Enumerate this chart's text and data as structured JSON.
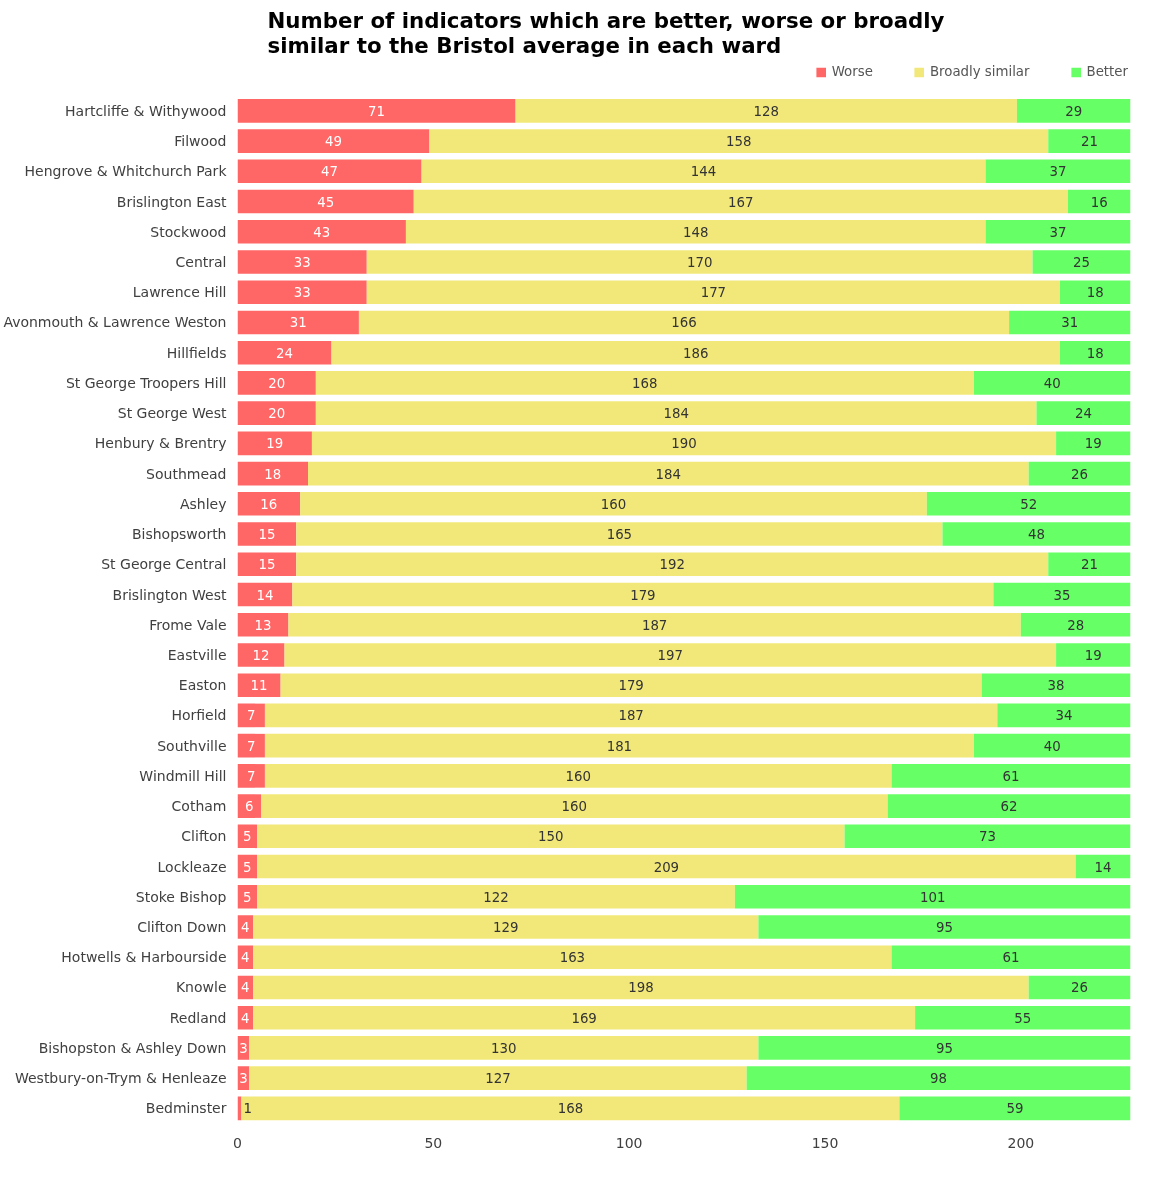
{
  "chart_data": {
    "type": "bar",
    "orientation": "horizontal",
    "stacked": true,
    "title": "Number of indicators which are better, worse or broadly similar to the Bristol average in each ward",
    "categories": [
      "Hartcliffe & Withywood",
      "Filwood",
      "Hengrove & Whitchurch Park",
      "Brislington East",
      "Stockwood",
      "Central",
      "Lawrence Hill",
      "Avonmouth & Lawrence Weston",
      "Hillfields",
      "St George Troopers Hill",
      "St George West",
      "Henbury & Brentry",
      "Southmead",
      "Ashley",
      "Bishopsworth",
      "St George Central",
      "Brislington West",
      "Frome Vale",
      "Eastville",
      "Easton",
      "Horfield",
      "Southville",
      "Windmill Hill",
      "Cotham",
      "Clifton",
      "Lockleaze",
      "Stoke Bishop",
      "Clifton Down",
      "Hotwells & Harbourside",
      "Knowle",
      "Redland",
      "Bishopston & Ashley Down",
      "Westbury-on-Trym & Henleaze",
      "Bedminster"
    ],
    "series": [
      {
        "name": "Worse",
        "color": "#ff6666",
        "values": [
          71,
          49,
          47,
          45,
          43,
          33,
          33,
          31,
          24,
          20,
          20,
          19,
          18,
          16,
          15,
          15,
          14,
          13,
          12,
          11,
          7,
          7,
          7,
          6,
          5,
          5,
          5,
          4,
          4,
          4,
          4,
          3,
          3,
          1
        ]
      },
      {
        "name": "Broadly similar",
        "color": "#f2e87a",
        "values": [
          128,
          158,
          144,
          167,
          148,
          170,
          177,
          166,
          186,
          168,
          184,
          190,
          184,
          160,
          165,
          192,
          179,
          187,
          197,
          179,
          187,
          181,
          160,
          160,
          150,
          209,
          122,
          129,
          163,
          198,
          169,
          130,
          127,
          168
        ]
      },
      {
        "name": "Better",
        "color": "#66ff66",
        "values": [
          29,
          21,
          37,
          16,
          37,
          25,
          18,
          31,
          18,
          40,
          24,
          19,
          26,
          52,
          48,
          21,
          35,
          28,
          19,
          38,
          34,
          40,
          61,
          62,
          73,
          14,
          101,
          95,
          61,
          26,
          55,
          95,
          98,
          59
        ]
      }
    ],
    "xlim": [
      0,
      228
    ],
    "xticks": [
      0,
      50,
      100,
      150,
      200
    ],
    "data_labels": true,
    "legend": "top right",
    "grid": false
  }
}
